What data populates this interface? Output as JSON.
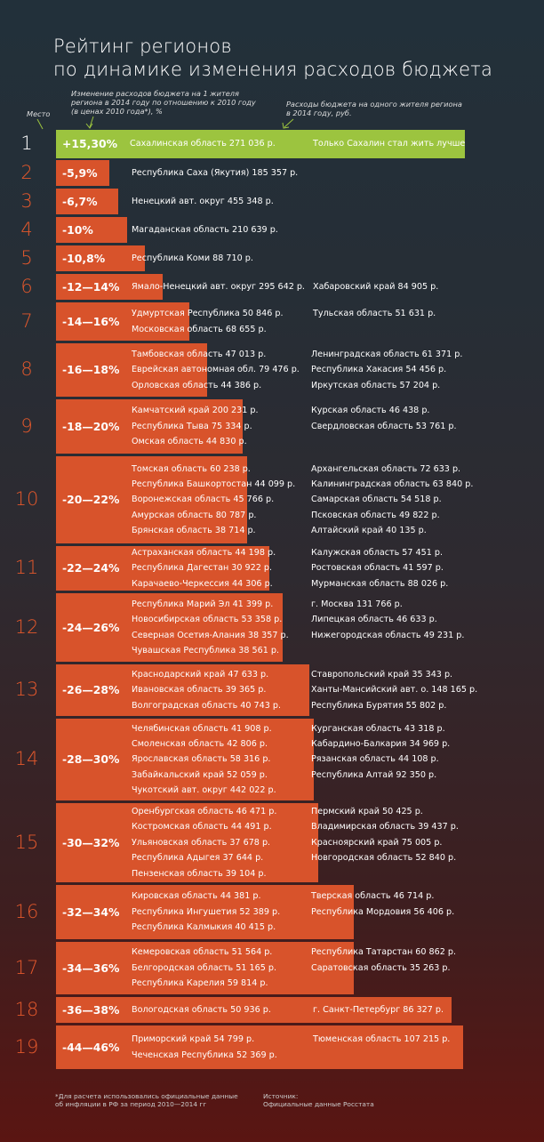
{
  "title_line1": "Рейтинг регионов",
  "title_line2": "по динамике изменения расходов бюджета",
  "note_place": "Место",
  "note_change": [
    "Изменение расходов бюджета на 1 жителя",
    "региона в 2014 году по отношению к 2010 году",
    "(в ценах 2010 года*), %"
  ],
  "note_spend": [
    "Расходы бюджета на одного жителя региона",
    "в 2014 году, руб."
  ],
  "footnote": [
    "*Для расчета использовались официальные данные",
    "об инфляции в РФ за период 2010—2014 гг"
  ],
  "source": [
    "Источник:",
    "Официальные данные Росстата"
  ],
  "colors": {
    "bar": "#d8532b",
    "first": "#9cc43f",
    "rank": "#e3582c"
  },
  "chart_data": {
    "type": "table",
    "rows": [
      {
        "rank": "1",
        "range": "+15,30%",
        "left": [
          "Сахалинская область 271 036 р."
        ],
        "right": [
          "Только Сахалин стал жить лучше"
        ]
      },
      {
        "rank": "2",
        "range": "-5,9%",
        "left": [
          "Республика Саха (Якутия) 185 357 р."
        ],
        "right": []
      },
      {
        "rank": "3",
        "range": "-6,7%",
        "left": [
          "Ненецкий авт. округ 455 348 р."
        ],
        "right": []
      },
      {
        "rank": "4",
        "range": "-10%",
        "left": [
          "Магаданская область 210 639 р."
        ],
        "right": []
      },
      {
        "rank": "5",
        "range": "-10,8%",
        "left": [
          "Республика Коми 88 710 р."
        ],
        "right": []
      },
      {
        "rank": "6",
        "range": "-12—14%",
        "left": [
          "Ямало-Ненецкий авт. округ 295 642 р."
        ],
        "right": [
          "Хабаровский край 84 905 р."
        ]
      },
      {
        "rank": "7",
        "range": "-14—16%",
        "left": [
          "Удмуртская Республика 50 846 р.",
          "Московская область 68 655 р."
        ],
        "right": [
          "Тульская область 51 631 р."
        ]
      },
      {
        "rank": "8",
        "range": "-16—18%",
        "left": [
          "Тамбовская область 47 013 р.",
          "Еврейская автономная обл. 79 476 р.",
          "Орловская область 44 386 р."
        ],
        "right": [
          "Ленинградская область 61 371 р.",
          "Республика Хакасия 54 456 р.",
          "Иркутская область 57 204 р."
        ]
      },
      {
        "rank": "9",
        "range": "-18—20%",
        "left": [
          "Камчатский край 200 231 р.",
          "Республика Тыва 75 334 р.",
          "Омская область 44 830 р."
        ],
        "right": [
          "Курская область 46 438 р.",
          "Свердловская область 53 761 р."
        ]
      },
      {
        "rank": "10",
        "range": "-20—22%",
        "left": [
          "Томская область 60 238 р.",
          "Республика Башкортостан 44 099 р.",
          "Воронежская область 45 766 р.",
          "Амурская область 80 787 р.",
          "Брянская область 38 714 р."
        ],
        "right": [
          "Архангельская область 72 633 р.",
          "Калининградская область 63 840 р.",
          "Самарская область 54 518 р.",
          "Псковская область 49 822 р.",
          "Алтайский край 40 135 р."
        ]
      },
      {
        "rank": "11",
        "range": "-22—24%",
        "left": [
          "Астраханская область 44 198 р.",
          "Республика Дагестан 30 922 р.",
          "Карачаево-Черкессия 44 306 р."
        ],
        "right": [
          "Калужская область 57 451 р.",
          "Ростовская область 41 597 р.",
          "Мурманская область 88 026 р."
        ]
      },
      {
        "rank": "12",
        "range": "-24—26%",
        "left": [
          "Республика Марий Эл 41 399 р.",
          "Новосибирская область 53 358 р.",
          "Северная Осетия-Алания 38 357 р.",
          "Чувашская Республика 38 561 р."
        ],
        "right": [
          "г. Москва 131 766 р.",
          "Липецкая область 46 633 р.",
          "Нижегородская область 49 231 р."
        ]
      },
      {
        "rank": "13",
        "range": "-26—28%",
        "left": [
          "Краснодарский край 47 633 р.",
          "Ивановская область 39 365 р.",
          "Волгоградская область 40 743 р."
        ],
        "right": [
          "Ставропольский край 35 343 р.",
          "Ханты-Мансийский авт. о. 148 165 р.",
          "Республика Бурятия 55 802 р."
        ]
      },
      {
        "rank": "14",
        "range": "-28—30%",
        "left": [
          "Челябинская область 41 908 р.",
          "Смоленская область 42 806 р.",
          "Ярославская область 58 316 р.",
          "Забайкальский край 52 059 р.",
          "Чукотский авт. округ 442 022 р."
        ],
        "right": [
          "Курганская область 43 318 р.",
          "Кабардино-Балкария 34 969 р.",
          "Рязанская область 44 108 р.",
          "Республика Алтай 92 350 р."
        ]
      },
      {
        "rank": "15",
        "range": "-30—32%",
        "left": [
          "Оренбургская область 46 471 р.",
          "Костромская область 44 491 р.",
          "Ульяновская область 37 678 р.",
          "Республика Адыгея 37 644 р.",
          "Пензенская область 39 104 р."
        ],
        "right": [
          "Пермский край 50 425 р.",
          "Владимирская область 39 437 р.",
          "Красноярский край 75 005 р.",
          "Новгородская область 52 840 р."
        ]
      },
      {
        "rank": "16",
        "range": "-32—34%",
        "left": [
          "Кировская область 44 381 р.",
          "Республика Ингушетия 52 389 р.",
          "Республика Калмыкия 40 415 р."
        ],
        "right": [
          "Тверская область 46 714 р.",
          "Республика Мордовия 56 406 р."
        ]
      },
      {
        "rank": "17",
        "range": "-34—36%",
        "left": [
          "Кемеровская область 51 564 р.",
          "Белгородская область 51 165 р.",
          "Республика Карелия 59 814 р."
        ],
        "right": [
          "Республика Татарстан 60 862 р.",
          "Саратовская область 35 263 р."
        ]
      },
      {
        "rank": "18",
        "range": "-36—38%",
        "left": [
          "Вологодская область 50 936 р."
        ],
        "right": [
          "г. Санкт-Петербург 86 327 р."
        ]
      },
      {
        "rank": "19",
        "range": "-44—46%",
        "left": [
          "Приморский край 54 799 р.",
          "Чеченская Республика 52 369 р."
        ],
        "right": [
          "Тюменская область 107 215 р."
        ]
      }
    ]
  }
}
